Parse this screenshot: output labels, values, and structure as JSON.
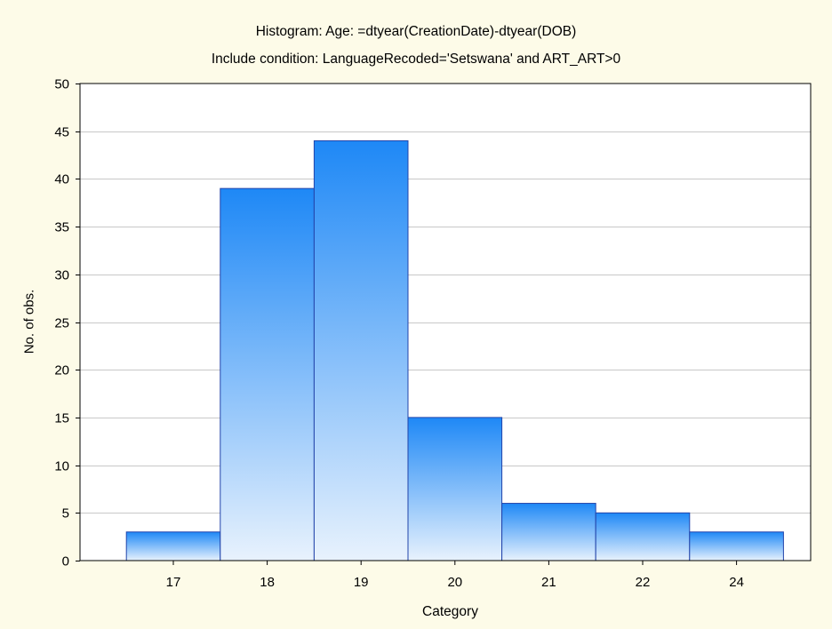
{
  "chart_data": {
    "type": "bar",
    "title": "Histogram: Age: =dtyear(CreationDate)-dtyear(DOB)",
    "subtitle": "Include condition: LanguageRecoded='Setswana' and ART_ART>0",
    "xlabel": "Category",
    "ylabel": "No. of obs.",
    "categories": [
      "17",
      "18",
      "19",
      "20",
      "21",
      "22",
      "24"
    ],
    "values": [
      3,
      39,
      44,
      15,
      6,
      5,
      3
    ],
    "ylim": [
      0,
      50
    ],
    "yticks": [
      0,
      5,
      10,
      15,
      20,
      25,
      30,
      35,
      40,
      45,
      50
    ],
    "grid": true,
    "colors": {
      "bar_top": "#1e88f6",
      "bar_bottom": "#e8f2fd",
      "bar_edge": "#2244aa",
      "background": "#fdfbe8"
    }
  }
}
